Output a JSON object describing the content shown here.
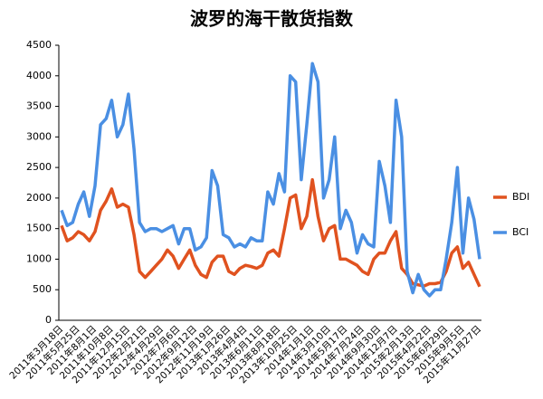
{
  "chart_data": {
    "type": "line",
    "title": "波罗的海干散货指数",
    "categories": [
      "2011年3月18日",
      null,
      null,
      "2011年5月25日",
      null,
      null,
      "2011年8月1日",
      null,
      null,
      "2011年10月8日",
      null,
      null,
      "2011年12月15日",
      null,
      null,
      "2012年2月21日",
      null,
      null,
      "2012年4月29日",
      null,
      null,
      "2012年7月6日",
      null,
      null,
      "2012年9月12日",
      null,
      null,
      "2012年11月19日",
      null,
      null,
      "2013年1月26日",
      null,
      null,
      "2013年4月4日",
      null,
      null,
      "2013年6月11日",
      null,
      null,
      "2013年8月18日",
      null,
      null,
      "2013年10月25日",
      null,
      null,
      "2014年1月1日",
      null,
      null,
      "2014年3月10日",
      null,
      null,
      "2014年5月17日",
      null,
      null,
      "2014年7月24日",
      null,
      null,
      "2014年9月30日",
      null,
      null,
      "2014年12月7日",
      null,
      null,
      "2015年2月13日",
      null,
      null,
      "2015年4月22日",
      null,
      null,
      "2015年6月29日",
      null,
      null,
      "2015年9月5日",
      null,
      null,
      "2015年11月27日"
    ],
    "series": [
      {
        "name": "BDI",
        "color": "#e0521f",
        "values": [
          1550,
          1300,
          1350,
          1450,
          1400,
          1300,
          1450,
          1800,
          1950,
          2150,
          1850,
          1900,
          1850,
          1400,
          800,
          700,
          800,
          900,
          1000,
          1150,
          1050,
          850,
          1000,
          1150,
          900,
          750,
          700,
          950,
          1050,
          1050,
          800,
          750,
          850,
          900,
          880,
          850,
          900,
          1100,
          1150,
          1050,
          1500,
          2000,
          2050,
          1500,
          1700,
          2300,
          1700,
          1300,
          1500,
          1550,
          1000,
          1000,
          950,
          900,
          800,
          750,
          1000,
          1100,
          1100,
          1300,
          1450,
          850,
          750,
          600,
          580,
          560,
          600,
          600,
          620,
          800,
          1100,
          1200,
          850,
          950,
          750,
          550
        ]
      },
      {
        "name": "BCI",
        "color": "#4a8fe3",
        "values": [
          1800,
          1550,
          1600,
          1900,
          2100,
          1700,
          2200,
          3200,
          3300,
          3600,
          3000,
          3200,
          3700,
          2800,
          1600,
          1450,
          1500,
          1500,
          1450,
          1500,
          1550,
          1250,
          1500,
          1500,
          1150,
          1200,
          1350,
          2450,
          2200,
          1400,
          1350,
          1200,
          1250,
          1200,
          1350,
          1300,
          1300,
          2100,
          1900,
          2400,
          2100,
          4000,
          3900,
          2300,
          3200,
          4200,
          3900,
          2000,
          2300,
          3000,
          1500,
          1800,
          1600,
          1100,
          1400,
          1250,
          1200,
          2600,
          2200,
          1600,
          3600,
          3000,
          800,
          450,
          750,
          500,
          400,
          500,
          500,
          1000,
          1600,
          2500,
          1100,
          2000,
          1650,
          1000
        ]
      }
    ],
    "ylim": [
      0,
      4500
    ],
    "yticks": [
      0,
      500,
      1000,
      1500,
      2000,
      2500,
      3000,
      3500,
      4000,
      4500
    ],
    "grid": false
  }
}
